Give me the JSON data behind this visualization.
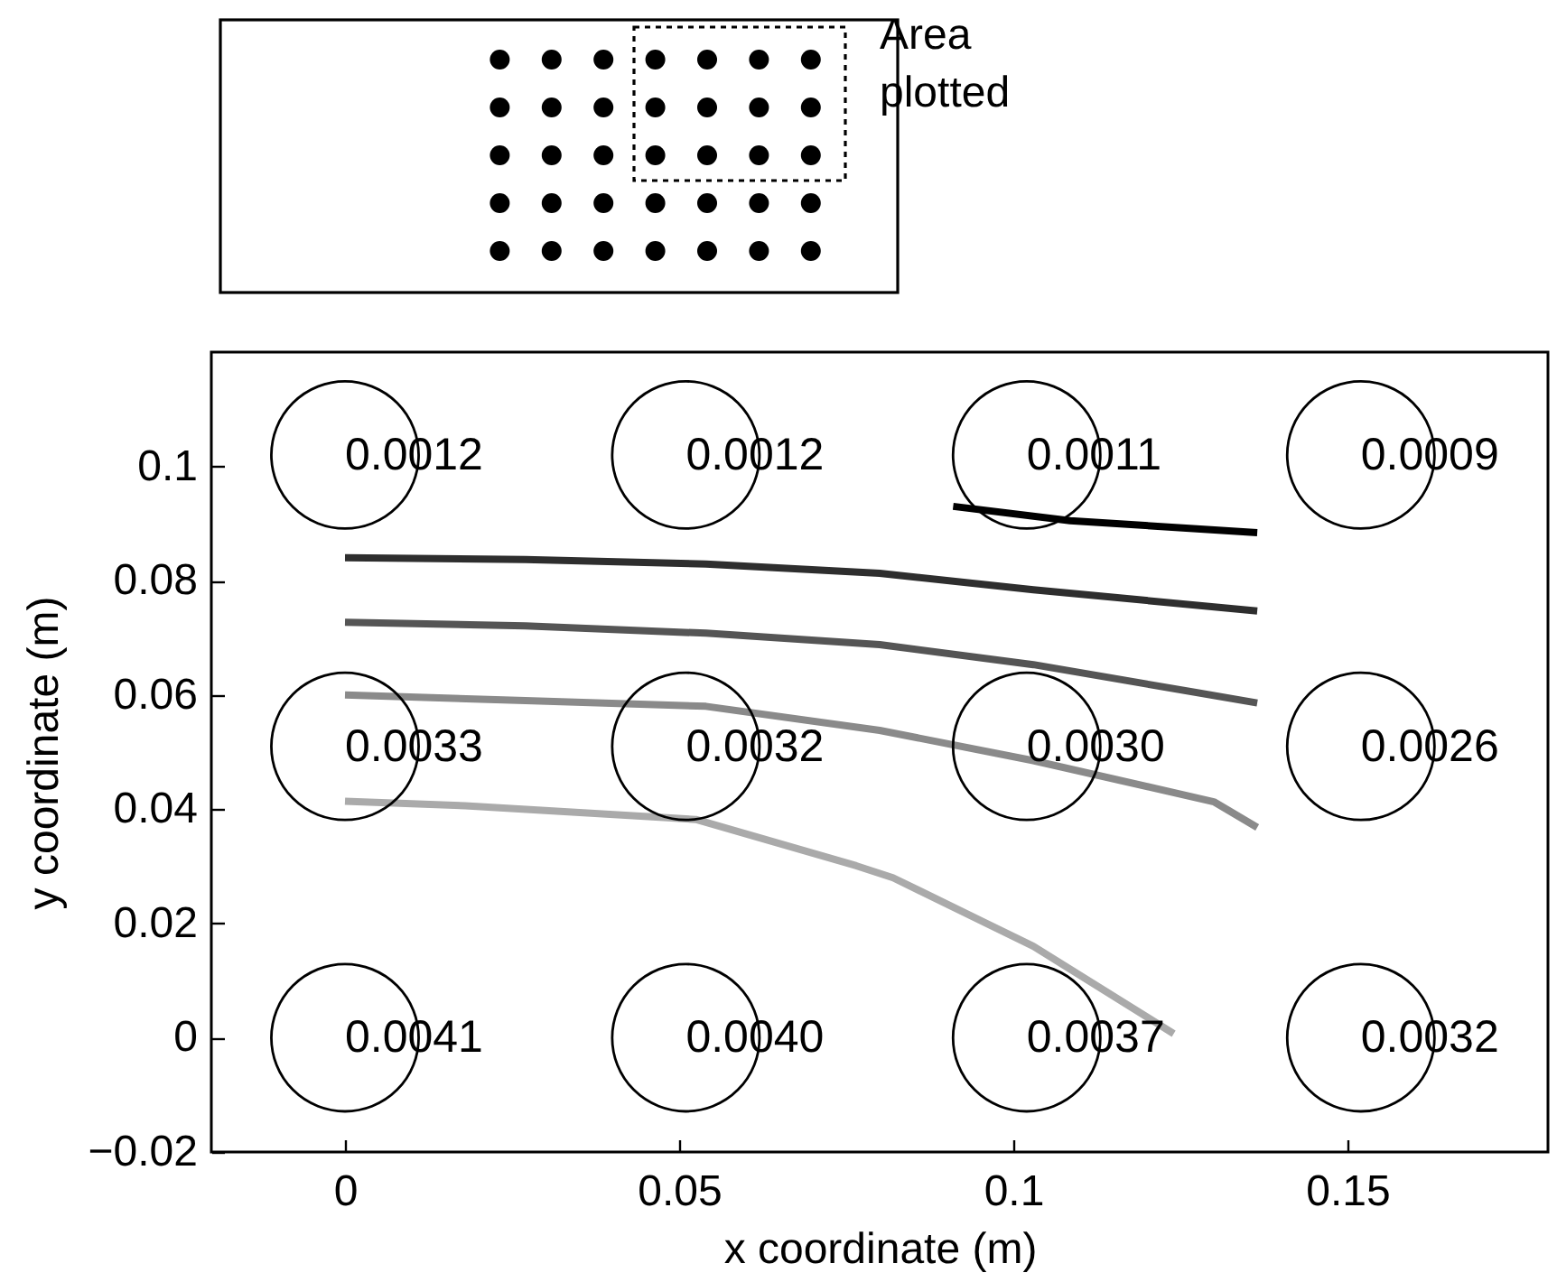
{
  "chart_data": {
    "type": "line",
    "xlabel": "x coordinate (m)",
    "ylabel": "y coordinate (m)",
    "xlim": [
      -0.02,
      0.18
    ],
    "ylim": [
      -0.02,
      0.12
    ],
    "xticks": [
      0,
      0.05,
      0.1,
      0.15
    ],
    "yticks": [
      -0.02,
      0,
      0.02,
      0.04,
      0.06,
      0.08,
      0.1
    ],
    "series": [
      {
        "type": "scatter",
        "marker": "circle",
        "color": "#000000",
        "x": [
          0,
          0.051,
          0.102,
          0.152,
          0,
          0.051,
          0.102,
          0.152,
          0,
          0.051,
          0.102,
          0.152
        ],
        "values": [
          0.102,
          0.102,
          0.102,
          0.102,
          0.051,
          0.051,
          0.051,
          0.051,
          0,
          0,
          0,
          0
        ]
      },
      {
        "color": "#000000",
        "x": [
          0.091,
          0.1085,
          0.1365
        ],
        "values": [
          0.093,
          0.0905,
          0.0884
        ]
      },
      {
        "color": "#2e2e2e",
        "x": [
          0,
          0.027,
          0.054,
          0.08,
          0.103,
          0.1365
        ],
        "values": [
          0.084,
          0.0837,
          0.0829,
          0.0813,
          0.0784,
          0.0747
        ]
      },
      {
        "color": "#555555",
        "x": [
          0,
          0.027,
          0.054,
          0.08,
          0.103,
          0.1365
        ],
        "values": [
          0.0727,
          0.0721,
          0.0708,
          0.0688,
          0.0653,
          0.0586
        ]
      },
      {
        "color": "#8a8a8a",
        "x": [
          0,
          0.027,
          0.054,
          0.08,
          0.103,
          0.13,
          0.1365
        ],
        "values": [
          0.06,
          0.059,
          0.058,
          0.0538,
          0.0485,
          0.0413,
          0.0368
        ]
      },
      {
        "color": "#aaaaaa",
        "x": [
          0,
          0.018,
          0.0525,
          0.0765,
          0.082,
          0.103,
          0.124
        ],
        "values": [
          0.0414,
          0.0406,
          0.0382,
          0.0301,
          0.028,
          0.016,
          0.0007
        ]
      }
    ],
    "annotations": [
      "Area plotted",
      {
        "text": "0.0012",
        "x": 0,
        "y": 0.102
      },
      {
        "text": "0.0012",
        "x": 0.051,
        "y": 0.102
      },
      {
        "text": "0.0011",
        "x": 0.102,
        "y": 0.102
      },
      {
        "text": "0.0009",
        "x": 0.152,
        "y": 0.102
      },
      {
        "text": "0.0033",
        "x": 0,
        "y": 0.051
      },
      {
        "text": "0.0032",
        "x": 0.051,
        "y": 0.051
      },
      {
        "text": "0.0030",
        "x": 0.102,
        "y": 0.051
      },
      {
        "text": "0.0026",
        "x": 0.152,
        "y": 0.051
      },
      {
        "text": "0.0041",
        "x": 0,
        "y": 0
      },
      {
        "text": "0.0040",
        "x": 0.051,
        "y": 0
      },
      {
        "text": "0.0037",
        "x": 0.102,
        "y": 0
      },
      {
        "text": "0.0032",
        "x": 0.152,
        "y": 0
      }
    ]
  }
}
